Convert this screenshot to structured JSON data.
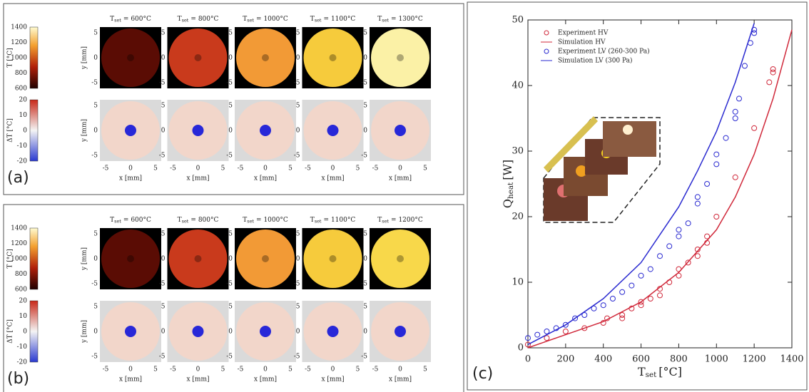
{
  "panel_a": {
    "label": "(a)",
    "symbol": "T",
    "subscript": "set",
    "setpoints": [
      "= 600°C",
      "= 800°C",
      "= 1000°C",
      "= 1100°C",
      "= 1300°C"
    ],
    "fills": [
      "#5a0c04",
      "#c93a1c",
      "#f29a36",
      "#f6cb3c",
      "#fbf1a6"
    ],
    "temp_colorbar": {
      "label": "T [°C]",
      "ticks": [
        "1400",
        "1200",
        "1000",
        "800",
        "600"
      ]
    },
    "delta_colorbar": {
      "label": "ΔT [°C]",
      "ticks": [
        "20",
        "10",
        "0",
        "-10",
        "-20"
      ]
    },
    "x_label": "x [mm]",
    "y_label": "y [mm]",
    "axis_ticks": [
      "-5",
      "0",
      "5"
    ]
  },
  "panel_b": {
    "label": "(b)",
    "symbol": "T",
    "subscript": "set",
    "setpoints": [
      "= 600°C",
      "= 800°C",
      "= 1000°C",
      "= 1100°C",
      "= 1200°C"
    ],
    "fills": [
      "#5a0c04",
      "#c93a1c",
      "#f29a36",
      "#f6cb3c",
      "#f8d84a"
    ],
    "temp_colorbar": {
      "label": "T [°C]",
      "ticks": [
        "1400",
        "1200",
        "1000",
        "800",
        "600"
      ]
    },
    "delta_colorbar": {
      "label": "ΔT [°C]",
      "ticks": [
        "20",
        "10",
        "0",
        "-10",
        "-20"
      ]
    },
    "x_label": "x [mm]",
    "y_label": "y [mm]",
    "axis_ticks": [
      "-5",
      "0",
      "5"
    ]
  },
  "chart_data": {
    "type": "scatter",
    "label": "(c)",
    "x_label": {
      "symbol": "T",
      "subscript": "set",
      "unit": "[°C]"
    },
    "y_label": {
      "symbol": "Q",
      "subscript": "heat",
      "unit": "[W]"
    },
    "xlim": [
      0,
      1400
    ],
    "xticks": [
      0,
      200,
      400,
      600,
      800,
      1000,
      1200,
      1400
    ],
    "ylim": [
      0,
      50
    ],
    "yticks": [
      0,
      10,
      20,
      30,
      40,
      50
    ],
    "series": [
      {
        "name": "Experiment HV",
        "color": "#d0283a",
        "mode": "markers",
        "x": [
          0,
          100,
          200,
          300,
          400,
          420,
          500,
          500,
          550,
          600,
          600,
          650,
          700,
          700,
          750,
          800,
          800,
          850,
          900,
          900,
          950,
          950,
          1000,
          1100,
          1200,
          1280,
          1300,
          1300
        ],
        "values": [
          0.5,
          1.5,
          2.5,
          3,
          3.8,
          4.5,
          4.5,
          5,
          6,
          6.5,
          7,
          7.5,
          8,
          9,
          10,
          11,
          12,
          13,
          14,
          15,
          16,
          17,
          20,
          26,
          33.5,
          40.5,
          42,
          42.5
        ]
      },
      {
        "name": "Simulation HV",
        "color": "#d0283a",
        "mode": "line",
        "x": [
          0,
          200,
          400,
          600,
          800,
          1000,
          1100,
          1200,
          1300,
          1400
        ],
        "values": [
          0,
          2,
          4,
          7,
          11.5,
          18,
          23,
          29.5,
          38,
          48.5
        ]
      },
      {
        "name": "Experiment LV (260-300 Pa)",
        "color": "#2a2ad0",
        "mode": "markers",
        "x": [
          0,
          50,
          100,
          150,
          200,
          250,
          300,
          350,
          400,
          450,
          500,
          550,
          600,
          650,
          700,
          750,
          800,
          800,
          850,
          900,
          900,
          950,
          1000,
          1000,
          1050,
          1100,
          1100,
          1120,
          1150,
          1180,
          1200,
          1200
        ],
        "values": [
          1.5,
          2,
          2.5,
          3,
          3.5,
          4.5,
          5,
          6,
          6.5,
          7.5,
          8.5,
          9.5,
          11,
          12,
          14,
          15.5,
          17,
          18,
          19,
          22,
          23,
          25,
          28,
          29.5,
          32,
          35,
          36,
          38,
          43,
          46.5,
          48,
          48.5
        ]
      },
      {
        "name": "Simulation LV (300 Pa)",
        "color": "#2a2ad0",
        "mode": "line",
        "x": [
          0,
          200,
          400,
          600,
          800,
          900,
          1000,
          1100,
          1200
        ],
        "values": [
          0.5,
          3.5,
          7.5,
          13,
          21.5,
          27,
          33,
          40.5,
          49.5
        ]
      }
    ],
    "legend": "top-left"
  }
}
